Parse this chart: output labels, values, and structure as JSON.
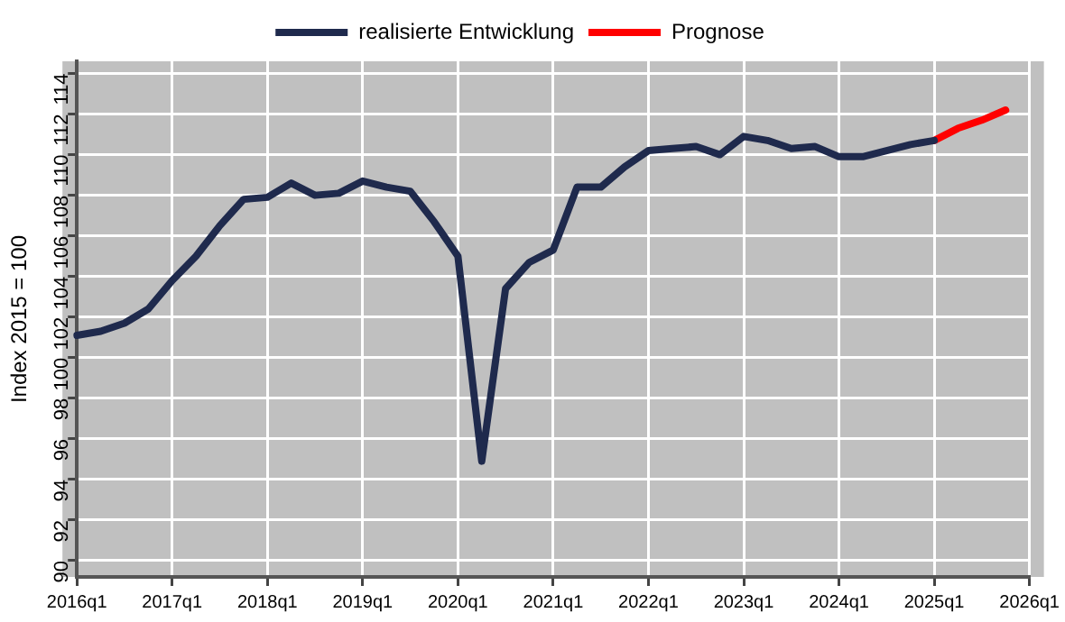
{
  "chart_data": {
    "type": "line",
    "ylabel": "Index 2015 = 100",
    "categories": [
      "2016q1",
      null,
      null,
      null,
      "2017q1",
      null,
      null,
      null,
      "2018q1",
      null,
      null,
      null,
      "2019q1",
      null,
      null,
      null,
      "2020q1",
      null,
      null,
      null,
      "2021q1",
      null,
      null,
      null,
      "2022q1",
      null,
      null,
      null,
      "2023q1",
      null,
      null,
      null,
      "2024q1",
      null,
      null,
      null,
      "2025q1",
      null,
      null,
      null,
      "2026q1"
    ],
    "ylim": [
      89.2,
      114.6
    ],
    "yticks": [
      90,
      92,
      94,
      96,
      98,
      100,
      102,
      104,
      106,
      108,
      110,
      112,
      114
    ],
    "grid": true,
    "legend": "top",
    "marker": "none",
    "line_style": "solid",
    "series": [
      {
        "name": "realisierte Entwicklung",
        "color": "#1f2a4d",
        "values": [
          101.1,
          101.3,
          101.7,
          102.4,
          103.8,
          105.0,
          106.5,
          107.8,
          107.9,
          108.6,
          108.0,
          108.1,
          108.7,
          108.4,
          108.2,
          106.7,
          105.0,
          94.9,
          103.4,
          104.7,
          105.3,
          108.4,
          108.4,
          109.4,
          110.2,
          110.3,
          110.4,
          110.0,
          110.9,
          110.7,
          110.3,
          110.4,
          109.9,
          109.9,
          110.2,
          110.5,
          110.7,
          null,
          null,
          null,
          null
        ]
      },
      {
        "name": "Prognose",
        "color": "#ff0000",
        "values": [
          null,
          null,
          null,
          null,
          null,
          null,
          null,
          null,
          null,
          null,
          null,
          null,
          null,
          null,
          null,
          null,
          null,
          null,
          null,
          null,
          null,
          null,
          null,
          null,
          null,
          null,
          null,
          null,
          null,
          null,
          null,
          null,
          null,
          null,
          null,
          null,
          110.7,
          111.3,
          111.7,
          112.2,
          null
        ]
      }
    ]
  }
}
